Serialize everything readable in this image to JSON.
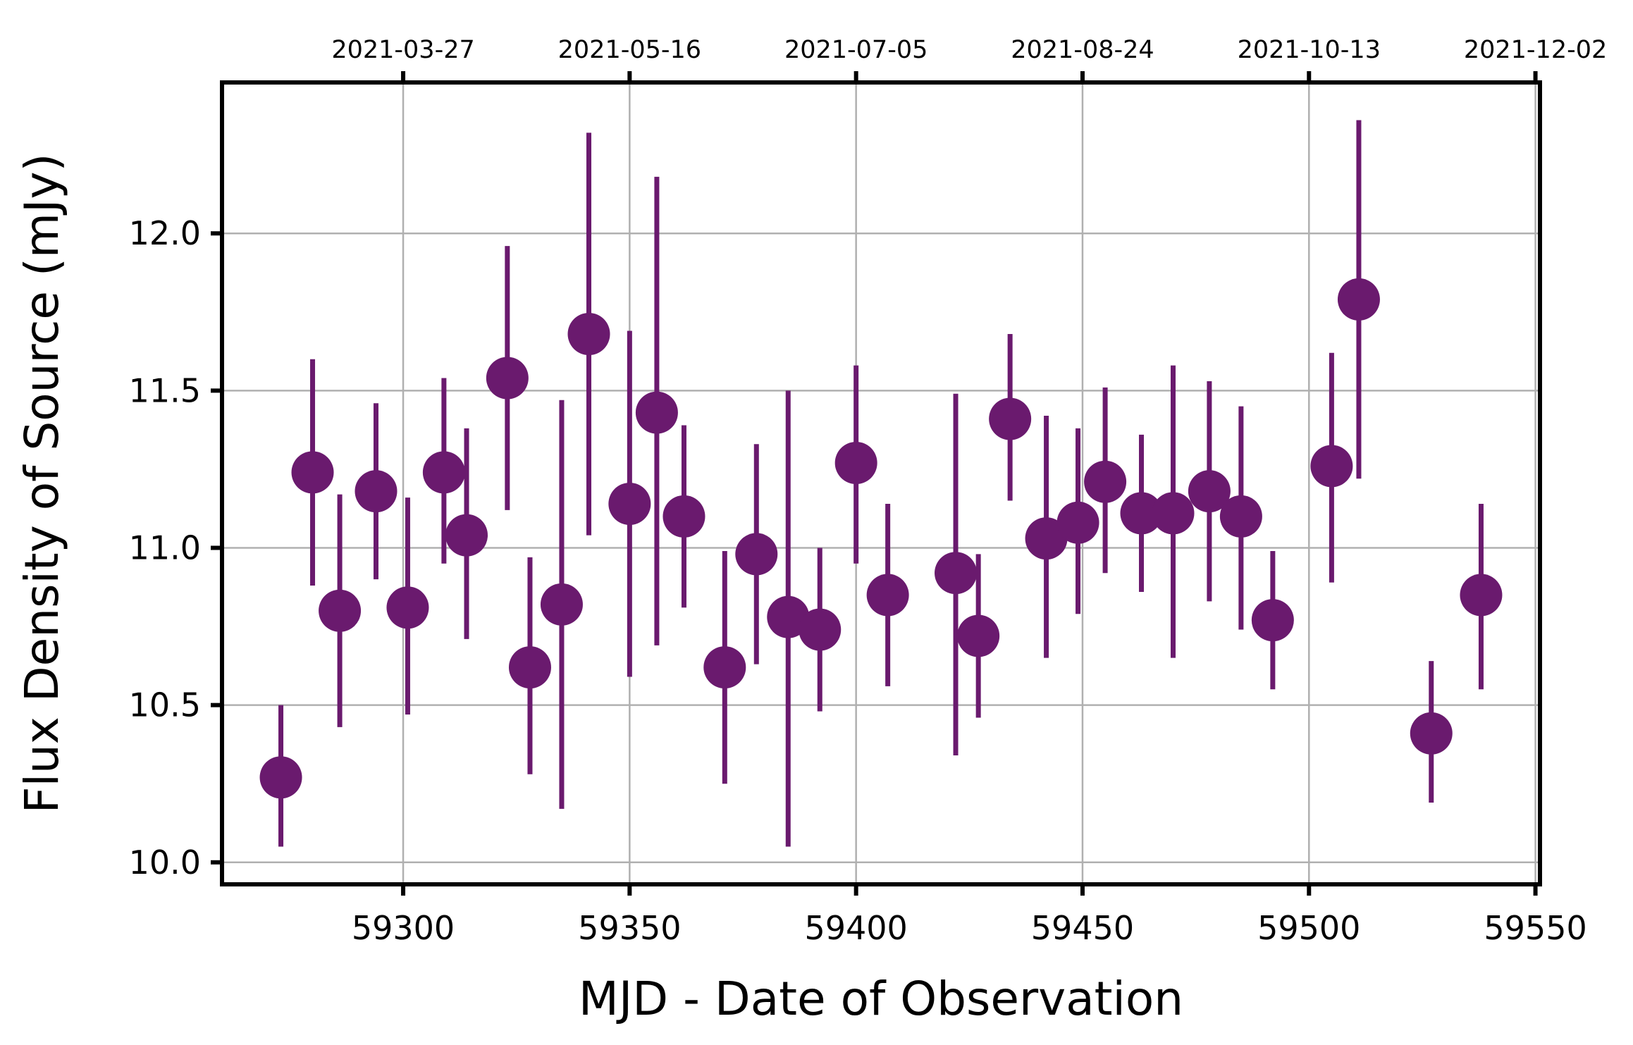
{
  "chart_data": {
    "type": "scatter",
    "title": "",
    "xlabel": "MJD - Date of Observation",
    "ylabel": "Flux Density of Source (mJy)",
    "xlim": [
      59260,
      59551
    ],
    "ylim": [
      9.93,
      12.48
    ],
    "x_ticks": [
      59300,
      59350,
      59400,
      59450,
      59500,
      59550
    ],
    "x_tick_labels": [
      "59300",
      "59350",
      "59400",
      "59450",
      "59500",
      "59550"
    ],
    "y_ticks": [
      10.0,
      10.5,
      11.0,
      11.5,
      12.0
    ],
    "y_tick_labels": [
      "10.0",
      "10.5",
      "11.0",
      "11.5",
      "12.0"
    ],
    "top_axis": {
      "ticks": [
        59300,
        59350,
        59400,
        59450,
        59500,
        59550
      ],
      "labels": [
        "2021-03-27",
        "2021-05-16",
        "2021-07-05",
        "2021-08-24",
        "2021-10-13",
        "2021-12-02"
      ]
    },
    "grid": true,
    "legend": "none",
    "marker_color": "#6a1a6e",
    "series": [
      {
        "points": [
          {
            "x": 59273,
            "y": 10.27,
            "err_low": 10.05,
            "err_high": 10.5
          },
          {
            "x": 59280,
            "y": 11.24,
            "err_low": 10.88,
            "err_high": 11.6
          },
          {
            "x": 59286,
            "y": 10.8,
            "err_low": 10.43,
            "err_high": 11.17
          },
          {
            "x": 59294,
            "y": 11.18,
            "err_low": 10.9,
            "err_high": 11.46
          },
          {
            "x": 59301,
            "y": 10.81,
            "err_low": 10.47,
            "err_high": 11.16
          },
          {
            "x": 59309,
            "y": 11.24,
            "err_low": 10.95,
            "err_high": 11.54
          },
          {
            "x": 59314,
            "y": 11.04,
            "err_low": 10.71,
            "err_high": 11.38
          },
          {
            "x": 59323,
            "y": 11.54,
            "err_low": 11.12,
            "err_high": 11.96
          },
          {
            "x": 59328,
            "y": 10.62,
            "err_low": 10.28,
            "err_high": 10.97
          },
          {
            "x": 59335,
            "y": 10.82,
            "err_low": 10.17,
            "err_high": 11.47
          },
          {
            "x": 59341,
            "y": 11.68,
            "err_low": 11.04,
            "err_high": 12.32
          },
          {
            "x": 59350,
            "y": 11.14,
            "err_low": 10.59,
            "err_high": 11.69
          },
          {
            "x": 59356,
            "y": 11.43,
            "err_low": 10.69,
            "err_high": 12.18
          },
          {
            "x": 59362,
            "y": 11.1,
            "err_low": 10.81,
            "err_high": 11.39
          },
          {
            "x": 59371,
            "y": 10.62,
            "err_low": 10.25,
            "err_high": 10.99
          },
          {
            "x": 59378,
            "y": 10.98,
            "err_low": 10.63,
            "err_high": 11.33
          },
          {
            "x": 59385,
            "y": 10.78,
            "err_low": 10.05,
            "err_high": 11.5
          },
          {
            "x": 59392,
            "y": 10.74,
            "err_low": 10.48,
            "err_high": 11.0
          },
          {
            "x": 59400,
            "y": 11.27,
            "err_low": 10.95,
            "err_high": 11.58
          },
          {
            "x": 59407,
            "y": 10.85,
            "err_low": 10.56,
            "err_high": 11.14
          },
          {
            "x": 59422,
            "y": 10.92,
            "err_low": 10.34,
            "err_high": 11.49
          },
          {
            "x": 59427,
            "y": 10.72,
            "err_low": 10.46,
            "err_high": 10.98
          },
          {
            "x": 59434,
            "y": 11.41,
            "err_low": 11.15,
            "err_high": 11.68
          },
          {
            "x": 59442,
            "y": 11.03,
            "err_low": 10.65,
            "err_high": 11.42
          },
          {
            "x": 59449,
            "y": 11.08,
            "err_low": 10.79,
            "err_high": 11.38
          },
          {
            "x": 59455,
            "y": 11.21,
            "err_low": 10.92,
            "err_high": 11.51
          },
          {
            "x": 59463,
            "y": 11.11,
            "err_low": 10.86,
            "err_high": 11.36
          },
          {
            "x": 59470,
            "y": 11.11,
            "err_low": 10.65,
            "err_high": 11.58
          },
          {
            "x": 59478,
            "y": 11.18,
            "err_low": 10.83,
            "err_high": 11.53
          },
          {
            "x": 59485,
            "y": 11.1,
            "err_low": 10.74,
            "err_high": 11.45
          },
          {
            "x": 59492,
            "y": 10.77,
            "err_low": 10.55,
            "err_high": 10.99
          },
          {
            "x": 59505,
            "y": 11.26,
            "err_low": 10.89,
            "err_high": 11.62
          },
          {
            "x": 59511,
            "y": 11.79,
            "err_low": 11.22,
            "err_high": 12.36
          },
          {
            "x": 59527,
            "y": 10.41,
            "err_low": 10.19,
            "err_high": 10.64
          },
          {
            "x": 59538,
            "y": 10.85,
            "err_low": 10.55,
            "err_high": 11.14
          }
        ]
      }
    ]
  }
}
